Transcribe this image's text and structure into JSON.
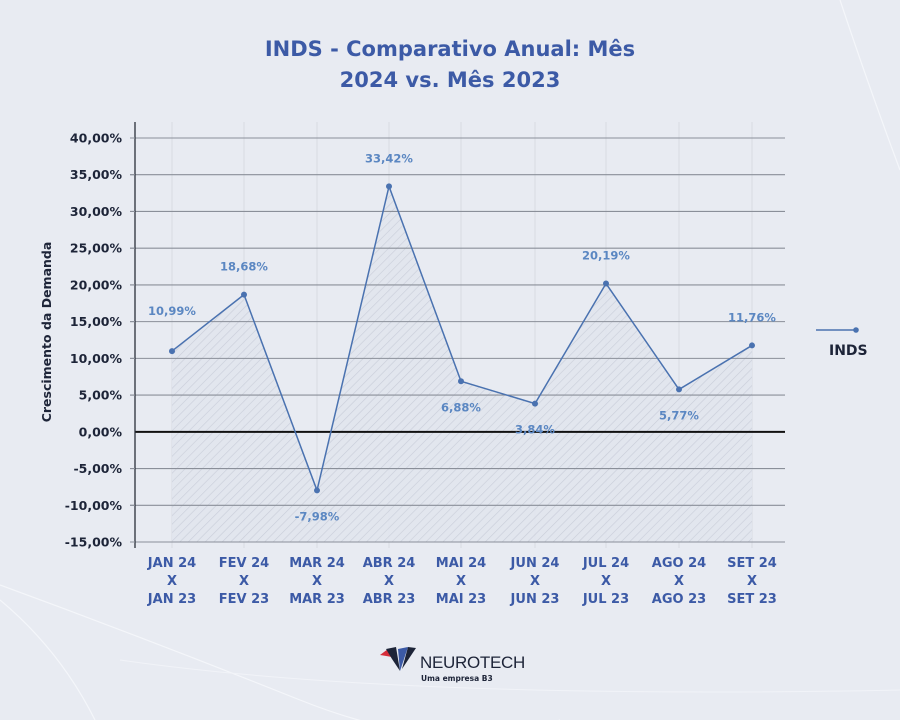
{
  "title": {
    "line1": "INDS - Comparativo Anual: Mês",
    "line2": "2024 vs. Mês 2023"
  },
  "legend": {
    "label": "INDS"
  },
  "logo": {
    "name": "NEUROTECH",
    "subtitle": "Uma empresa B3"
  },
  "colors": {
    "background": "#e8ebf2",
    "title": "#3c5aa6",
    "line": "#4a72b0",
    "data_label": "#5b87c2",
    "axis_text": "#1d2438",
    "grid": "#8a8f99"
  },
  "chart_data": {
    "type": "line",
    "title": "INDS - Comparativo Anual: Mês 2024 vs. Mês 2023",
    "xlabel": "",
    "ylabel": "Crescimento da Demanda",
    "ylim": [
      -15,
      40
    ],
    "yticks": [
      "40,00%",
      "35,00%",
      "30,00%",
      "25,00%",
      "20,00%",
      "15,00%",
      "10,00%",
      "5,00%",
      "0,00%",
      "-5,00%",
      "-10,00%",
      "-15,00%"
    ],
    "grid": true,
    "legend_position": "right",
    "categories": [
      {
        "line1": "JAN 24",
        "line2": "X",
        "line3": "JAN 23"
      },
      {
        "line1": "FEV 24",
        "line2": "X",
        "line3": "FEV 23"
      },
      {
        "line1": "MAR 24",
        "line2": "X",
        "line3": "MAR 23"
      },
      {
        "line1": "ABR 24",
        "line2": "X",
        "line3": "ABR 23"
      },
      {
        "line1": "MAI 24",
        "line2": "X",
        "line3": "MAI 23"
      },
      {
        "line1": "JUN 24",
        "line2": "X",
        "line3": "JUN 23"
      },
      {
        "line1": "JUL 24",
        "line2": "X",
        "line3": "JUL 23"
      },
      {
        "line1": "AGO 24",
        "line2": "X",
        "line3": "AGO 23"
      },
      {
        "line1": "SET 24",
        "line2": "X",
        "line3": "SET 23"
      }
    ],
    "series": [
      {
        "name": "INDS",
        "values": [
          10.99,
          18.68,
          -7.98,
          33.42,
          6.88,
          3.84,
          20.19,
          5.77,
          11.76
        ],
        "labels": [
          "10,99%",
          "18,68%",
          "-7,98%",
          "33,42%",
          "6,88%",
          "3,84%",
          "20,19%",
          "5,77%",
          "11,76%"
        ]
      }
    ]
  }
}
